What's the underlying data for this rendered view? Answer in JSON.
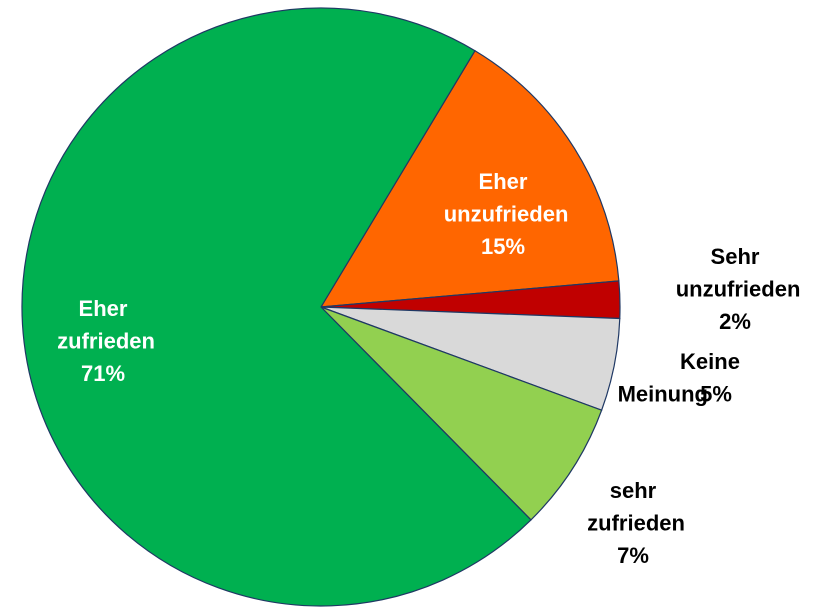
{
  "chart_data": {
    "type": "pie",
    "categories": [
      "Eher unzufrieden",
      "Sehr unzufrieden",
      "Keine Meinung",
      "sehr zufrieden",
      "Eher zufrieden"
    ],
    "values": [
      15,
      2,
      5,
      7,
      71
    ],
    "value_labels": [
      "15%",
      "2%",
      "5%",
      "7%",
      "71%"
    ],
    "colors": [
      "#ff6600",
      "#c00000",
      "#d9d9d9",
      "#92d050",
      "#00b050"
    ]
  }
}
